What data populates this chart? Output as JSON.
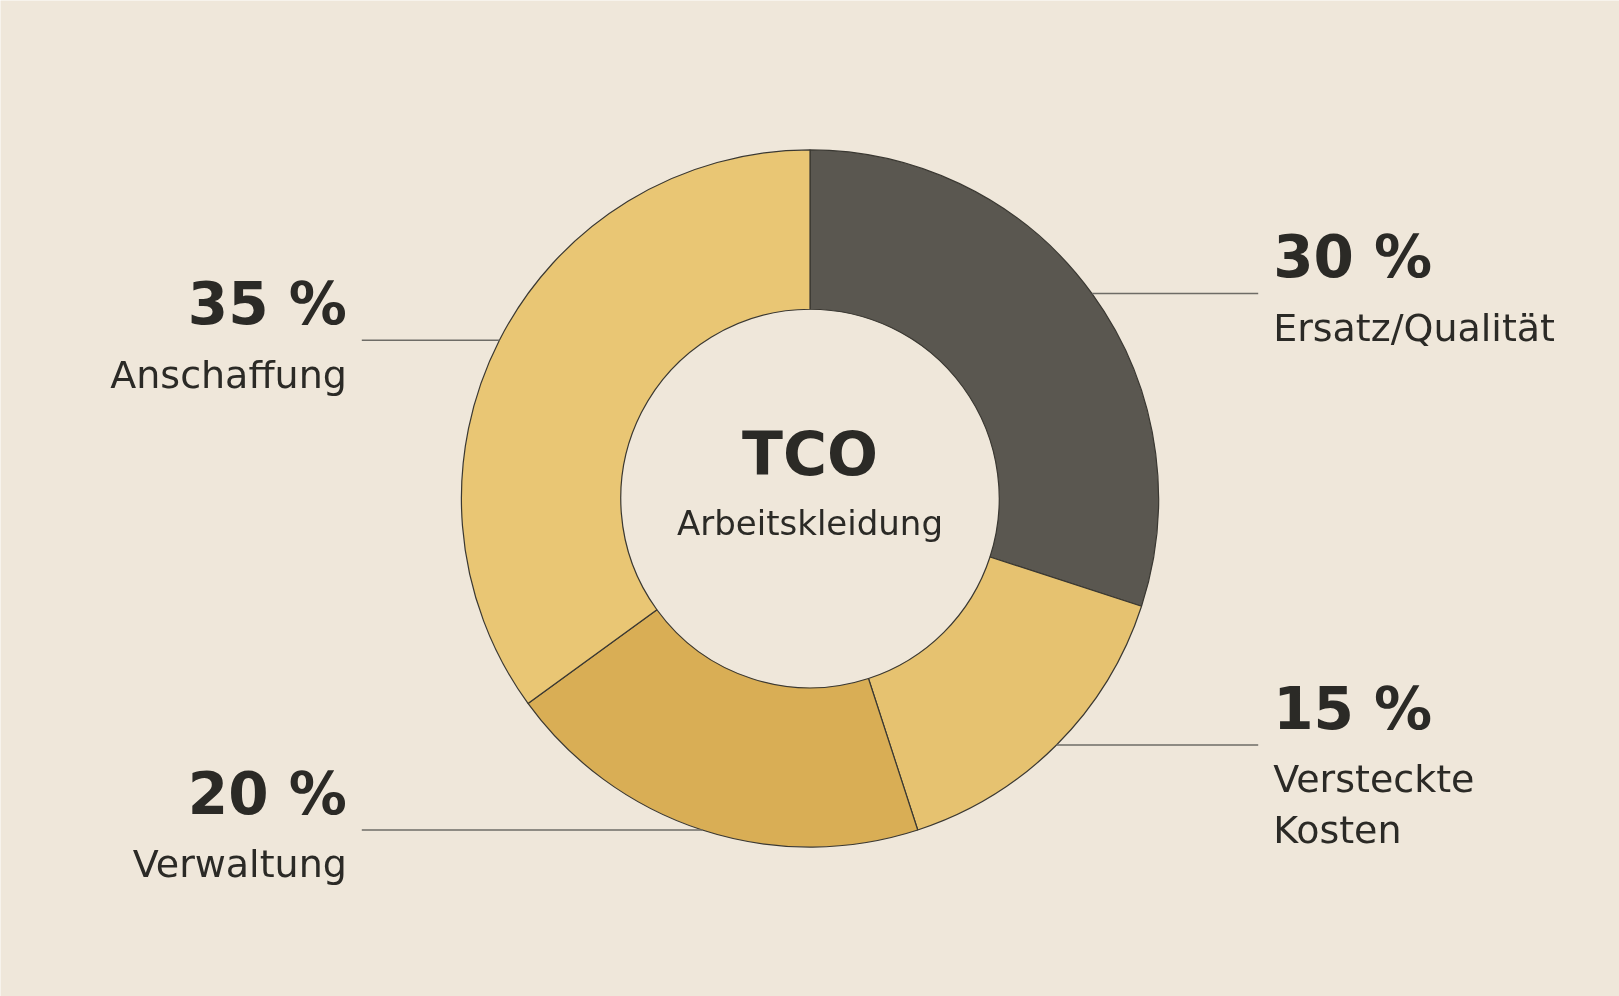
{
  "chart_data": {
    "type": "donut",
    "title": "TCO",
    "subtitle": "Arbeitskleidung",
    "categories": [
      "Ersatz/Qualität",
      "Versteckte Kosten",
      "Verwaltung",
      "Anschaffung"
    ],
    "values": [
      30,
      15,
      20,
      35
    ],
    "value_labels": [
      "30 %",
      "15 %",
      "20 %",
      "35 %"
    ],
    "colors": [
      "#5a5750",
      "#e6c270",
      "#d9ae55",
      "#e9c674"
    ]
  }
}
